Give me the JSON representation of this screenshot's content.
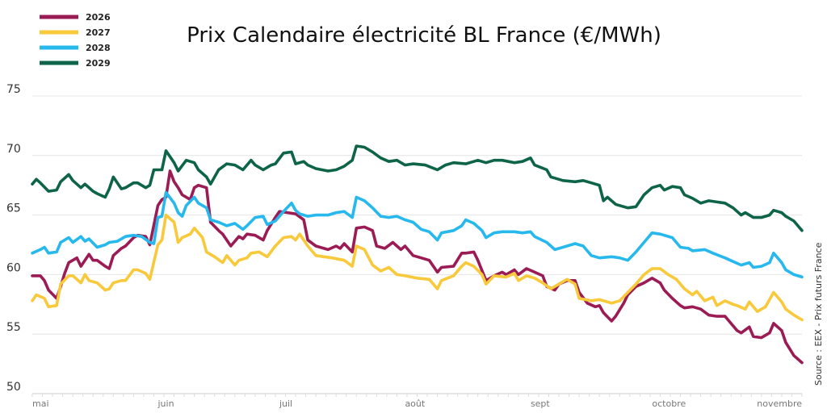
{
  "chart_data": {
    "type": "line",
    "title": "Prix Calendaire électricité BL France (€/MWh)",
    "xlabel": "",
    "ylabel": "",
    "source": "Source : EEX - Prix futurs France",
    "ylim": [
      50,
      75
    ],
    "yticks": [
      50,
      55,
      60,
      65,
      70,
      75
    ],
    "xlim": [
      0,
      190
    ],
    "x_unit": "days since 1 May",
    "xticks": [
      {
        "label": "mai",
        "x": 0
      },
      {
        "label": "juin",
        "x": 31
      },
      {
        "label": "juil",
        "x": 61
      },
      {
        "label": "août",
        "x": 92
      },
      {
        "label": "sept",
        "x": 123
      },
      {
        "label": "octobre",
        "x": 153
      },
      {
        "label": "novembre",
        "x": 184
      }
    ],
    "grid": true,
    "legend_position": "top-left",
    "series": [
      {
        "name": "2026",
        "color": "#9b1b55",
        "x": [
          0,
          2,
          3,
          4,
          6,
          7,
          8,
          9,
          11,
          12,
          14,
          15,
          16,
          18,
          19,
          20,
          22,
          23,
          25,
          26,
          28,
          29,
          31,
          32,
          33,
          34,
          35,
          36,
          37,
          39,
          40,
          41,
          43,
          44,
          46,
          47,
          49,
          51,
          52,
          53,
          55,
          57,
          58,
          60,
          61,
          63,
          65,
          67,
          68,
          70,
          73,
          75,
          76,
          77,
          79,
          80,
          82,
          84,
          85,
          87,
          89,
          91,
          92,
          94,
          96,
          98,
          100,
          101,
          104,
          106,
          107,
          109,
          110,
          112,
          114,
          116,
          117,
          119,
          120,
          122,
          124,
          126,
          127,
          129,
          130,
          132,
          134,
          135,
          137,
          139,
          140,
          141,
          143,
          144,
          146,
          147,
          149,
          151,
          153,
          155,
          156,
          158,
          160,
          161,
          163,
          165,
          167,
          169,
          171,
          172,
          174,
          175,
          177,
          178,
          180,
          182,
          183,
          185,
          186,
          188,
          190
        ],
        "y": [
          59.9,
          59.9,
          59.5,
          58.7,
          58.0,
          59.0,
          60.1,
          61.0,
          61.4,
          60.7,
          61.7,
          61.2,
          61.2,
          60.7,
          60.5,
          61.6,
          62.2,
          62.4,
          63.1,
          63.3,
          63.2,
          62.5,
          65.8,
          66.3,
          66.5,
          68.7,
          67.8,
          67.3,
          66.7,
          66.3,
          67.3,
          67.5,
          67.3,
          64.4,
          63.7,
          63.4,
          62.4,
          63.2,
          63.0,
          63.4,
          63.3,
          62.9,
          63.7,
          64.8,
          65.3,
          65.2,
          65.1,
          64.6,
          62.9,
          62.4,
          62.1,
          62.4,
          62.2,
          62.6,
          61.9,
          63.9,
          64.0,
          63.7,
          62.4,
          62.2,
          62.7,
          62.1,
          62.4,
          61.6,
          61.4,
          61.2,
          60.2,
          60.6,
          60.7,
          61.8,
          61.8,
          61.9,
          61.2,
          59.5,
          59.9,
          60.2,
          60.0,
          60.4,
          60.0,
          60.5,
          60.2,
          59.9,
          59.0,
          58.7,
          59.2,
          59.5,
          59.5,
          58.5,
          57.6,
          57.3,
          57.4,
          56.8,
          56.1,
          56.5,
          57.6,
          58.3,
          59.0,
          59.3,
          59.7,
          59.3,
          58.7,
          58.0,
          57.4,
          57.2,
          57.3,
          57.1,
          56.6,
          56.5,
          56.5,
          56.1,
          55.3,
          55.1,
          55.6,
          54.8,
          54.7,
          55.1,
          55.9,
          55.3,
          54.3,
          53.2,
          52.6
        ]
      },
      {
        "name": "2027",
        "color": "#f8c93a",
        "x": [
          0,
          1,
          3,
          4,
          6,
          7,
          9,
          10,
          12,
          13,
          14,
          16,
          18,
          19,
          20,
          22,
          23,
          25,
          26,
          28,
          29,
          31,
          32,
          33,
          35,
          36,
          37,
          39,
          40,
          42,
          43,
          45,
          47,
          48,
          50,
          51,
          53,
          54,
          56,
          58,
          60,
          62,
          64,
          65,
          66,
          68,
          70,
          72,
          74,
          77,
          79,
          80,
          82,
          84,
          86,
          88,
          90,
          92,
          95,
          98,
          100,
          101,
          104,
          106,
          107,
          109,
          111,
          112,
          114,
          117,
          119,
          120,
          122,
          124,
          126,
          128,
          130,
          132,
          134,
          135,
          138,
          140,
          143,
          145,
          147,
          149,
          151,
          153,
          155,
          157,
          159,
          161,
          163,
          164,
          166,
          168,
          169,
          171,
          173,
          174,
          176,
          177,
          179,
          181,
          183,
          185,
          186,
          188,
          190
        ],
        "y": [
          57.8,
          58.3,
          58.0,
          57.3,
          57.4,
          59.2,
          59.9,
          59.9,
          59.3,
          60.0,
          59.5,
          59.3,
          58.7,
          58.8,
          59.3,
          59.5,
          59.5,
          60.4,
          60.4,
          60.1,
          59.6,
          62.5,
          62.9,
          65.0,
          64.4,
          62.7,
          63.1,
          63.4,
          63.9,
          63.1,
          61.9,
          61.5,
          61.0,
          61.6,
          60.8,
          61.2,
          61.4,
          61.8,
          61.9,
          61.5,
          62.4,
          63.1,
          63.2,
          62.9,
          63.4,
          62.4,
          61.6,
          61.5,
          61.4,
          61.2,
          60.7,
          62.4,
          62.1,
          60.8,
          60.3,
          60.6,
          60.0,
          59.9,
          59.7,
          59.6,
          58.8,
          59.5,
          59.9,
          60.7,
          61.0,
          60.7,
          60.0,
          59.2,
          59.9,
          59.8,
          60.1,
          59.5,
          59.9,
          59.7,
          59.3,
          58.8,
          59.2,
          59.6,
          59.2,
          58.0,
          57.8,
          57.9,
          57.6,
          57.8,
          58.5,
          59.2,
          60.0,
          60.5,
          60.5,
          60.0,
          59.6,
          58.8,
          58.3,
          58.6,
          57.8,
          58.1,
          57.4,
          57.8,
          57.5,
          57.4,
          57.1,
          57.7,
          56.9,
          57.3,
          58.5,
          57.7,
          57.1,
          56.6,
          56.2
        ]
      },
      {
        "name": "2028",
        "color": "#27b8ee",
        "x": [
          0,
          2,
          3,
          4,
          6,
          7,
          9,
          10,
          12,
          13,
          14,
          16,
          18,
          19,
          21,
          23,
          25,
          27,
          29,
          30,
          31,
          32,
          33,
          35,
          36,
          37,
          38,
          40,
          41,
          43,
          44,
          46,
          48,
          50,
          52,
          53,
          55,
          57,
          58,
          60,
          62,
          64,
          65,
          66,
          68,
          70,
          73,
          75,
          77,
          79,
          80,
          82,
          84,
          86,
          88,
          90,
          92,
          94,
          96,
          98,
          100,
          101,
          104,
          106,
          107,
          109,
          111,
          112,
          114,
          116,
          119,
          121,
          123,
          124,
          127,
          129,
          131,
          134,
          136,
          138,
          140,
          143,
          145,
          147,
          149,
          151,
          153,
          155,
          158,
          160,
          162,
          163,
          166,
          168,
          171,
          173,
          175,
          177,
          178,
          180,
          182,
          183,
          185,
          186,
          187,
          188,
          190
        ],
        "y": [
          61.8,
          62.1,
          62.3,
          61.8,
          61.9,
          62.7,
          63.1,
          62.7,
          63.2,
          62.8,
          63.0,
          62.3,
          62.5,
          62.7,
          62.8,
          63.2,
          63.3,
          63.2,
          62.7,
          62.6,
          64.8,
          64.9,
          66.9,
          66.0,
          65.2,
          64.9,
          65.8,
          66.5,
          66.0,
          65.6,
          64.6,
          64.4,
          64.1,
          64.3,
          63.8,
          64.1,
          64.8,
          64.9,
          64.2,
          64.5,
          65.3,
          66.0,
          65.4,
          65.1,
          64.9,
          65.0,
          65.0,
          65.2,
          65.3,
          64.8,
          66.5,
          66.2,
          65.6,
          64.9,
          64.8,
          64.9,
          64.6,
          64.4,
          63.8,
          63.6,
          62.9,
          63.5,
          63.7,
          64.1,
          64.6,
          64.3,
          63.7,
          63.1,
          63.5,
          63.6,
          63.6,
          63.5,
          63.6,
          63.2,
          62.7,
          62.1,
          62.3,
          62.6,
          62.4,
          61.6,
          61.4,
          61.5,
          61.4,
          61.2,
          61.9,
          62.7,
          63.5,
          63.4,
          63.1,
          62.3,
          62.2,
          62.0,
          62.1,
          61.8,
          61.4,
          61.1,
          60.8,
          61.0,
          60.6,
          60.7,
          61.0,
          61.8,
          61.0,
          60.4,
          60.2,
          60.0,
          59.8
        ]
      },
      {
        "name": "2029",
        "color": "#0e6448",
        "x": [
          0,
          1,
          2,
          4,
          6,
          7,
          9,
          10,
          12,
          13,
          15,
          16,
          18,
          19,
          20,
          22,
          23,
          25,
          26,
          28,
          29,
          30,
          32,
          33,
          35,
          36,
          38,
          40,
          41,
          43,
          44,
          46,
          48,
          50,
          52,
          54,
          55,
          57,
          59,
          60,
          62,
          64,
          65,
          67,
          68,
          70,
          73,
          75,
          77,
          79,
          80,
          82,
          84,
          86,
          88,
          90,
          92,
          94,
          97,
          100,
          102,
          104,
          107,
          110,
          112,
          114,
          116,
          119,
          121,
          123,
          124,
          127,
          128,
          129,
          131,
          134,
          136,
          138,
          140,
          141,
          142,
          144,
          145,
          147,
          149,
          151,
          153,
          155,
          156,
          158,
          160,
          161,
          163,
          165,
          167,
          169,
          171,
          173,
          175,
          176,
          178,
          180,
          182,
          183,
          185,
          186,
          188,
          190
        ],
        "y": [
          67.6,
          68.0,
          67.7,
          67.0,
          67.1,
          67.8,
          68.4,
          67.9,
          67.3,
          67.6,
          67.0,
          66.8,
          66.5,
          67.2,
          68.2,
          67.2,
          67.3,
          67.7,
          67.7,
          67.3,
          67.5,
          68.8,
          68.8,
          70.4,
          69.4,
          68.7,
          69.6,
          69.4,
          68.8,
          68.2,
          67.6,
          68.8,
          69.3,
          69.2,
          68.8,
          69.6,
          69.2,
          68.8,
          69.2,
          69.3,
          70.2,
          70.3,
          69.3,
          69.5,
          69.2,
          68.9,
          68.7,
          68.8,
          69.1,
          69.6,
          70.8,
          70.7,
          70.3,
          69.8,
          69.5,
          69.6,
          69.2,
          69.3,
          69.2,
          68.8,
          69.2,
          69.4,
          69.3,
          69.6,
          69.4,
          69.6,
          69.6,
          69.4,
          69.5,
          69.8,
          69.2,
          68.8,
          68.2,
          68.1,
          67.9,
          67.8,
          67.9,
          67.7,
          67.5,
          66.2,
          66.5,
          65.9,
          65.8,
          65.6,
          65.7,
          66.7,
          67.3,
          67.5,
          67.1,
          67.4,
          67.3,
          66.7,
          66.4,
          66.0,
          66.2,
          66.1,
          66.0,
          65.6,
          65.0,
          65.2,
          64.8,
          64.8,
          65.0,
          65.4,
          65.2,
          64.9,
          64.5,
          63.7
        ]
      }
    ]
  }
}
